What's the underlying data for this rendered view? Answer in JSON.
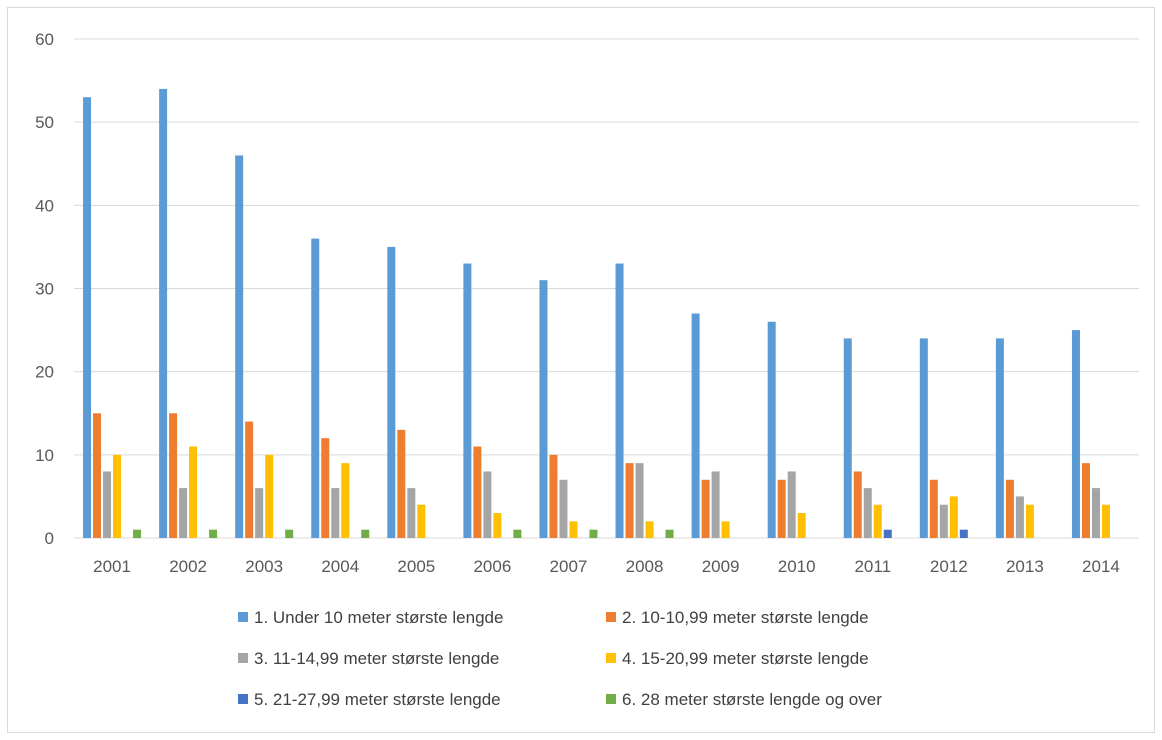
{
  "chart_data": {
    "type": "bar",
    "categories": [
      "2001",
      "2002",
      "2003",
      "2004",
      "2005",
      "2006",
      "2007",
      "2008",
      "2009",
      "2010",
      "2011",
      "2012",
      "2013",
      "2014"
    ],
    "series": [
      {
        "name": "1. Under 10 meter største lengde",
        "color": "#5b9bd5",
        "values": [
          53,
          54,
          46,
          36,
          35,
          33,
          31,
          33,
          27,
          26,
          24,
          24,
          24,
          25
        ]
      },
      {
        "name": "2. 10-10,99 meter største lengde",
        "color": "#ed7d31",
        "values": [
          15,
          15,
          14,
          12,
          13,
          11,
          10,
          9,
          7,
          7,
          8,
          7,
          7,
          9
        ]
      },
      {
        "name": "3. 11-14,99 meter største lengde",
        "color": "#a5a5a5",
        "values": [
          8,
          6,
          6,
          6,
          6,
          8,
          7,
          9,
          8,
          8,
          6,
          4,
          5,
          6
        ]
      },
      {
        "name": "4. 15-20,99 meter største lengde",
        "color": "#ffc000",
        "values": [
          10,
          11,
          10,
          9,
          4,
          3,
          2,
          2,
          2,
          3,
          4,
          5,
          4,
          4
        ]
      },
      {
        "name": "5. 21-27,99 meter største lengde",
        "color": "#4472c4",
        "values": [
          0,
          0,
          0,
          0,
          0,
          0,
          0,
          0,
          0,
          0,
          1,
          1,
          0,
          0
        ]
      },
      {
        "name": "6. 28 meter største lengde og over",
        "color": "#70ad47",
        "values": [
          1,
          1,
          1,
          1,
          0,
          1,
          1,
          1,
          0,
          0,
          0,
          0,
          0,
          0
        ]
      }
    ],
    "ylim": [
      0,
      60
    ],
    "yticks": [
      0,
      10,
      20,
      30,
      40,
      50,
      60
    ],
    "grid": true,
    "legend_position": "bottom",
    "gridline_color": "#d9d9d9",
    "tick_label_color": "#595959",
    "legend_text_color": "#404040"
  }
}
